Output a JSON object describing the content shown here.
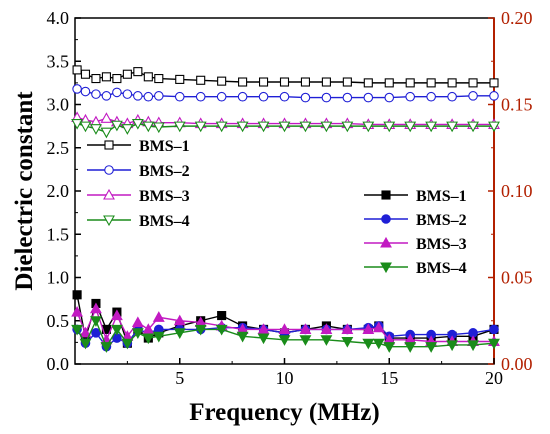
{
  "chart_data": {
    "type": "line",
    "title": "",
    "xlabel": "Frequency (MHz)",
    "ylabel_left": "Dielectric constant",
    "ylabel_right": "",
    "xlim": [
      0,
      20
    ],
    "ylim_left": [
      0,
      4
    ],
    "ylim_right": [
      0,
      0.2
    ],
    "x_ticks": [
      "5",
      "10",
      "15",
      "20"
    ],
    "y_ticks_left": [
      "0.0",
      "0.5",
      "1.0",
      "1.5",
      "2.0",
      "2.5",
      "3.0",
      "3.5",
      "4.0"
    ],
    "y_ticks_right": [
      "0.00",
      "0.05",
      "0.10",
      "0.15",
      "0.20"
    ],
    "grid": false,
    "right_axis_color": "#b22000",
    "legend_left": {
      "placement": "left-middle",
      "entries": [
        "BMS–1",
        "BMS–2",
        "BMS–3",
        "BMS–4"
      ]
    },
    "legend_right": {
      "placement": "right-middle",
      "entries": [
        "BMS–1",
        "BMS–2",
        "BMS–3",
        "BMS–4"
      ]
    },
    "series": [
      {
        "name": "BMS–1",
        "axis": "left",
        "color": "#000000",
        "marker": "square-open",
        "x": [
          0.1,
          0.5,
          1.0,
          1.5,
          2.0,
          2.5,
          3.0,
          3.5,
          4.0,
          5.0,
          6.0,
          7.0,
          8.0,
          9.0,
          10.0,
          11.0,
          12.0,
          13.0,
          14.0,
          15.0,
          16.0,
          17.0,
          18.0,
          19.0,
          20.0
        ],
        "values": [
          3.4,
          3.35,
          3.3,
          3.32,
          3.3,
          3.35,
          3.38,
          3.32,
          3.3,
          3.29,
          3.28,
          3.27,
          3.26,
          3.26,
          3.26,
          3.26,
          3.26,
          3.26,
          3.25,
          3.25,
          3.25,
          3.25,
          3.25,
          3.25,
          3.25
        ]
      },
      {
        "name": "BMS–2",
        "axis": "left",
        "color": "#1f1fd6",
        "marker": "circle-open",
        "x": [
          0.1,
          0.5,
          1.0,
          1.5,
          2.0,
          2.5,
          3.0,
          3.5,
          4.0,
          5.0,
          6.0,
          7.0,
          8.0,
          9.0,
          10.0,
          11.0,
          12.0,
          13.0,
          14.0,
          15.0,
          16.0,
          17.0,
          18.0,
          19.0,
          20.0
        ],
        "values": [
          3.18,
          3.15,
          3.12,
          3.1,
          3.14,
          3.12,
          3.1,
          3.09,
          3.1,
          3.09,
          3.09,
          3.09,
          3.09,
          3.09,
          3.09,
          3.08,
          3.08,
          3.08,
          3.08,
          3.08,
          3.09,
          3.09,
          3.09,
          3.1,
          3.1
        ]
      },
      {
        "name": "BMS–3",
        "axis": "left",
        "color": "#c21ac2",
        "marker": "triangle-up-open",
        "x": [
          0.1,
          0.5,
          1.0,
          1.5,
          2.0,
          2.5,
          3.0,
          3.5,
          4.0,
          5.0,
          6.0,
          7.0,
          8.0,
          9.0,
          10.0,
          11.0,
          12.0,
          13.0,
          14.0,
          15.0,
          16.0,
          17.0,
          18.0,
          19.0,
          20.0
        ],
        "values": [
          2.85,
          2.82,
          2.8,
          2.84,
          2.8,
          2.78,
          2.82,
          2.8,
          2.79,
          2.79,
          2.78,
          2.78,
          2.78,
          2.78,
          2.78,
          2.78,
          2.78,
          2.78,
          2.77,
          2.77,
          2.77,
          2.77,
          2.77,
          2.77,
          2.77
        ]
      },
      {
        "name": "BMS–4",
        "axis": "left",
        "color": "#1a8c1a",
        "marker": "triangle-down-open",
        "x": [
          0.1,
          0.5,
          1.0,
          1.5,
          2.0,
          2.5,
          3.0,
          3.5,
          4.0,
          5.0,
          6.0,
          7.0,
          8.0,
          9.0,
          10.0,
          11.0,
          12.0,
          13.0,
          14.0,
          15.0,
          16.0,
          17.0,
          18.0,
          19.0,
          20.0
        ],
        "values": [
          2.78,
          2.75,
          2.72,
          2.68,
          2.76,
          2.72,
          2.78,
          2.75,
          2.74,
          2.75,
          2.75,
          2.75,
          2.75,
          2.75,
          2.75,
          2.75,
          2.75,
          2.75,
          2.75,
          2.75,
          2.75,
          2.75,
          2.75,
          2.75,
          2.75
        ]
      },
      {
        "name": "BMS–1",
        "axis": "right",
        "color": "#000000",
        "marker": "square-filled",
        "x": [
          0.1,
          0.5,
          1.0,
          1.5,
          2.0,
          2.5,
          3.0,
          3.5,
          4.0,
          5.0,
          6.0,
          7.0,
          8.0,
          9.0,
          10.0,
          11.0,
          12.0,
          13.0,
          14.0,
          14.5,
          15.0,
          16.0,
          17.0,
          18.0,
          19.0,
          20.0
        ],
        "values": [
          0.04,
          0.015,
          0.035,
          0.02,
          0.03,
          0.012,
          0.02,
          0.015,
          0.018,
          0.022,
          0.025,
          0.028,
          0.022,
          0.02,
          0.018,
          0.02,
          0.022,
          0.02,
          0.02,
          0.022,
          0.015,
          0.015,
          0.015,
          0.016,
          0.016,
          0.02
        ]
      },
      {
        "name": "BMS–2",
        "axis": "right",
        "color": "#1f1fd6",
        "marker": "circle-filled",
        "x": [
          0.1,
          0.5,
          1.0,
          1.5,
          2.0,
          2.5,
          3.0,
          3.5,
          4.0,
          5.0,
          6.0,
          7.0,
          8.0,
          9.0,
          10.0,
          11.0,
          12.0,
          13.0,
          14.0,
          14.5,
          15.0,
          16.0,
          17.0,
          18.0,
          19.0,
          20.0
        ],
        "values": [
          0.02,
          0.012,
          0.018,
          0.01,
          0.015,
          0.012,
          0.02,
          0.018,
          0.02,
          0.02,
          0.02,
          0.021,
          0.021,
          0.02,
          0.018,
          0.02,
          0.02,
          0.02,
          0.021,
          0.022,
          0.016,
          0.017,
          0.017,
          0.017,
          0.018,
          0.02
        ]
      },
      {
        "name": "BMS–3",
        "axis": "right",
        "color": "#c21ac2",
        "marker": "triangle-up-filled",
        "x": [
          0.1,
          0.5,
          1.0,
          1.5,
          2.0,
          2.5,
          3.0,
          3.5,
          4.0,
          5.0,
          6.0,
          7.0,
          8.0,
          9.0,
          10.0,
          11.0,
          12.0,
          13.0,
          14.0,
          14.5,
          15.0,
          16.0,
          17.0,
          18.0,
          19.0,
          20.0
        ],
        "values": [
          0.03,
          0.018,
          0.032,
          0.014,
          0.028,
          0.016,
          0.024,
          0.02,
          0.027,
          0.025,
          0.024,
          0.022,
          0.02,
          0.02,
          0.02,
          0.02,
          0.02,
          0.02,
          0.02,
          0.021,
          0.014,
          0.014,
          0.013,
          0.013,
          0.013,
          0.013
        ]
      },
      {
        "name": "BMS–4",
        "axis": "right",
        "color": "#1a8c1a",
        "marker": "triangle-down-filled",
        "x": [
          0.1,
          0.5,
          1.0,
          1.5,
          2.0,
          2.5,
          3.0,
          3.5,
          4.0,
          5.0,
          6.0,
          7.0,
          8.0,
          9.0,
          10.0,
          11.0,
          12.0,
          13.0,
          14.0,
          14.5,
          15.0,
          16.0,
          17.0,
          18.0,
          19.0,
          20.0
        ],
        "values": [
          0.02,
          0.012,
          0.025,
          0.01,
          0.02,
          0.012,
          0.018,
          0.015,
          0.016,
          0.018,
          0.02,
          0.02,
          0.016,
          0.015,
          0.014,
          0.014,
          0.014,
          0.013,
          0.012,
          0.012,
          0.01,
          0.01,
          0.01,
          0.011,
          0.011,
          0.012
        ]
      }
    ]
  }
}
